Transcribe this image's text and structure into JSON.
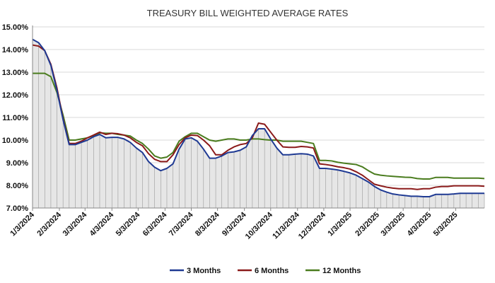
{
  "chart_data": {
    "type": "area",
    "title": "TREASURY BILL WEIGHTED AVERAGE RATES",
    "ylim": [
      7.0,
      15.0
    ],
    "y_ticks": [
      "15.00%",
      "14.00%",
      "13.00%",
      "12.00%",
      "11.00%",
      "10.00%",
      "9.00%",
      "8.00%",
      "7.00%"
    ],
    "y_tick_values": [
      15,
      14,
      13,
      12,
      11,
      10,
      9,
      8,
      7
    ],
    "x_ticks": [
      "1/3/2024",
      "2/3/2024",
      "3/3/2024",
      "4/3/2024",
      "5/3/2024",
      "6/3/2024",
      "7/3/2024",
      "8/3/2024",
      "9/3/2024",
      "10/3/2024",
      "11/3/2024",
      "12/3/2024",
      "1/3/2025",
      "2/3/2025",
      "3/3/2025",
      "4/3/2025",
      "5/3/2025"
    ],
    "x_tick_index": [
      0,
      4.4,
      8.6,
      13.0,
      17.3,
      21.7,
      26.0,
      30.3,
      34.7,
      39.0,
      43.4,
      47.7,
      52.0,
      56.5,
      60.7,
      65.0,
      69.3
    ],
    "grid": "horizontal",
    "legend_position": "bottom",
    "series": [
      {
        "name": "3 Months",
        "color": "#1f3a93",
        "values": [
          14.45,
          14.3,
          13.95,
          13.3,
          12.2,
          10.9,
          9.8,
          9.8,
          9.9,
          10.0,
          10.15,
          10.25,
          10.1,
          10.12,
          10.12,
          10.05,
          9.9,
          9.65,
          9.45,
          9.05,
          8.8,
          8.65,
          8.75,
          8.95,
          9.6,
          10.05,
          10.1,
          9.95,
          9.6,
          9.2,
          9.2,
          9.3,
          9.45,
          9.48,
          9.55,
          9.7,
          10.2,
          10.5,
          10.5,
          10.05,
          9.65,
          9.35,
          9.35,
          9.38,
          9.4,
          9.38,
          9.3,
          8.75,
          8.75,
          8.72,
          8.68,
          8.62,
          8.55,
          8.45,
          8.3,
          8.15,
          7.95,
          7.8,
          7.7,
          7.62,
          7.58,
          7.55,
          7.52,
          7.52,
          7.5,
          7.5,
          7.6,
          7.6,
          7.6,
          7.62,
          7.65,
          7.65,
          7.65,
          7.65,
          7.65
        ]
      },
      {
        "name": "6 Months",
        "color": "#8b1a1a",
        "values": [
          14.2,
          14.15,
          13.95,
          13.35,
          12.3,
          10.95,
          9.85,
          9.85,
          9.95,
          10.1,
          10.22,
          10.35,
          10.25,
          10.3,
          10.28,
          10.22,
          10.1,
          9.9,
          9.75,
          9.4,
          9.15,
          9.05,
          9.05,
          9.35,
          9.8,
          10.1,
          10.22,
          10.2,
          10.0,
          9.75,
          9.35,
          9.35,
          9.55,
          9.7,
          9.8,
          9.85,
          10.1,
          10.75,
          10.7,
          10.35,
          10.0,
          9.7,
          9.68,
          9.68,
          9.72,
          9.7,
          9.65,
          8.95,
          8.92,
          8.88,
          8.82,
          8.78,
          8.72,
          8.6,
          8.45,
          8.25,
          8.05,
          7.98,
          7.92,
          7.88,
          7.85,
          7.85,
          7.85,
          7.82,
          7.85,
          7.85,
          7.92,
          7.95,
          7.95,
          7.98,
          7.98,
          7.98,
          7.98,
          7.98,
          7.96
        ]
      },
      {
        "name": "12 Months",
        "color": "#4a7c1e",
        "values": [
          12.95,
          12.95,
          12.95,
          12.8,
          12.1,
          11.1,
          10.0,
          10.0,
          10.05,
          10.1,
          10.2,
          10.32,
          10.3,
          10.3,
          10.25,
          10.22,
          10.18,
          10.0,
          9.85,
          9.6,
          9.3,
          9.2,
          9.25,
          9.45,
          9.95,
          10.15,
          10.3,
          10.3,
          10.15,
          10.0,
          9.95,
          10.0,
          10.05,
          10.05,
          10.0,
          10.0,
          10.05,
          10.05,
          10.02,
          10.0,
          10.0,
          9.95,
          9.95,
          9.95,
          9.95,
          9.9,
          9.85,
          9.1,
          9.1,
          9.08,
          9.02,
          8.98,
          8.95,
          8.92,
          8.82,
          8.65,
          8.5,
          8.45,
          8.42,
          8.4,
          8.38,
          8.36,
          8.35,
          8.3,
          8.28,
          8.28,
          8.35,
          8.35,
          8.35,
          8.32,
          8.32,
          8.32,
          8.32,
          8.32,
          8.3
        ]
      }
    ]
  }
}
